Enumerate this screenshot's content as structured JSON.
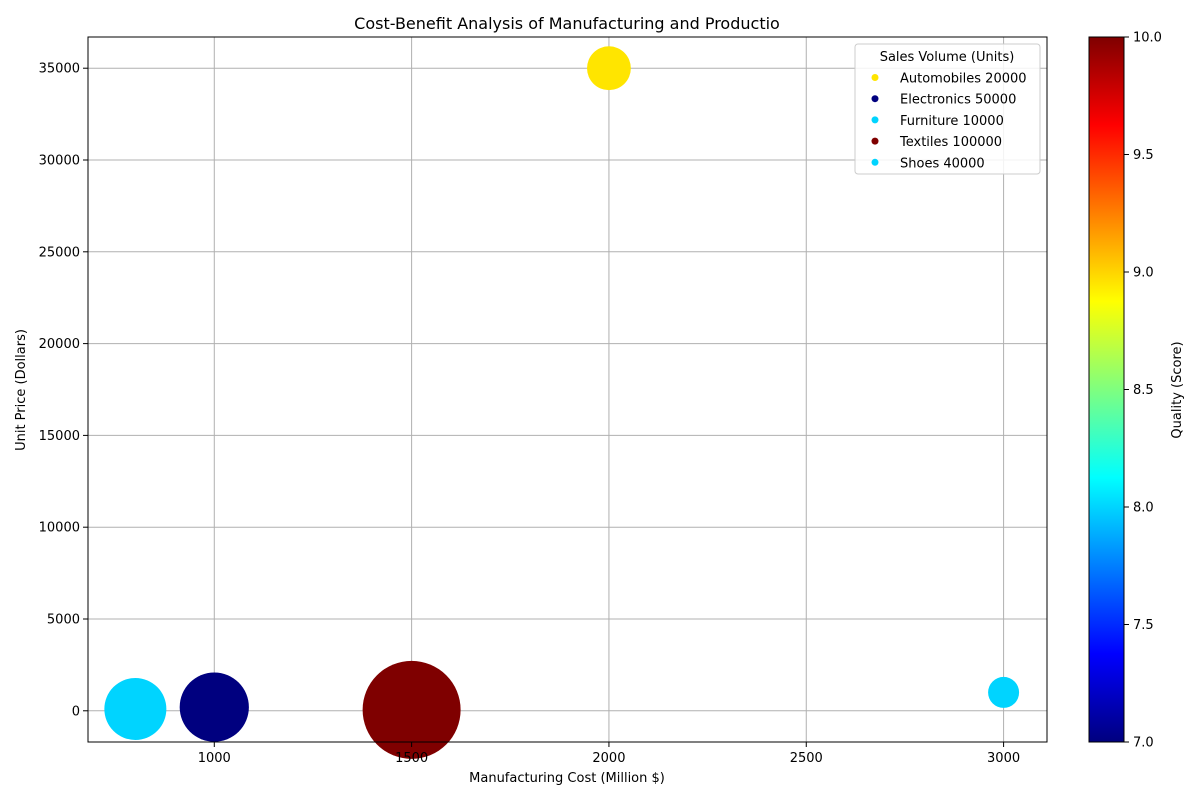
{
  "chart_data": {
    "type": "scatter",
    "title": "Cost-Benefit Analysis of Manufacturing and Productio",
    "xlabel": "Manufacturing Cost (Million $)",
    "ylabel": "Unit Price (Dollars)",
    "xlim": [
      680,
      3110
    ],
    "ylim": [
      -1700,
      36700
    ],
    "xticks": [
      1000,
      1500,
      2000,
      2500,
      3000
    ],
    "yticks": [
      0,
      5000,
      10000,
      15000,
      20000,
      25000,
      30000,
      35000
    ],
    "grid": true,
    "legend_title": "Sales Volume (Units)",
    "legend_placement": "top-right",
    "colorbar": {
      "label": "Quality (Score)",
      "range": [
        7.0,
        10.0
      ],
      "ticks": [
        "7.0",
        "7.5",
        "8.0",
        "8.5",
        "9.0",
        "9.5",
        "10.0"
      ],
      "colormap": [
        "#00007f",
        "#0000ff",
        "#007fff",
        "#00ffff",
        "#7fff7f",
        "#ffff00",
        "#ff7f00",
        "#ff0000",
        "#7f0000"
      ]
    },
    "points": [
      {
        "category": "Automobiles",
        "sales_volume": "20000",
        "x": 2000,
        "y": 35000,
        "quality": 9,
        "color": "#ffe500"
      },
      {
        "category": "Electronics",
        "sales_volume": "50000",
        "x": 1000,
        "y": 200,
        "quality": 7,
        "color": "#00007f"
      },
      {
        "category": "Furniture",
        "sales_volume": "10000",
        "x": 3000,
        "y": 1000,
        "quality": 8,
        "color": "#00d4ff"
      },
      {
        "category": "Textiles",
        "sales_volume": "100000",
        "x": 1500,
        "y": 50,
        "quality": 10,
        "color": "#7f0000"
      },
      {
        "category": "Shoes",
        "sales_volume": "40000",
        "x": 800,
        "y": 100,
        "quality": 8,
        "color": "#00d4ff"
      }
    ]
  }
}
